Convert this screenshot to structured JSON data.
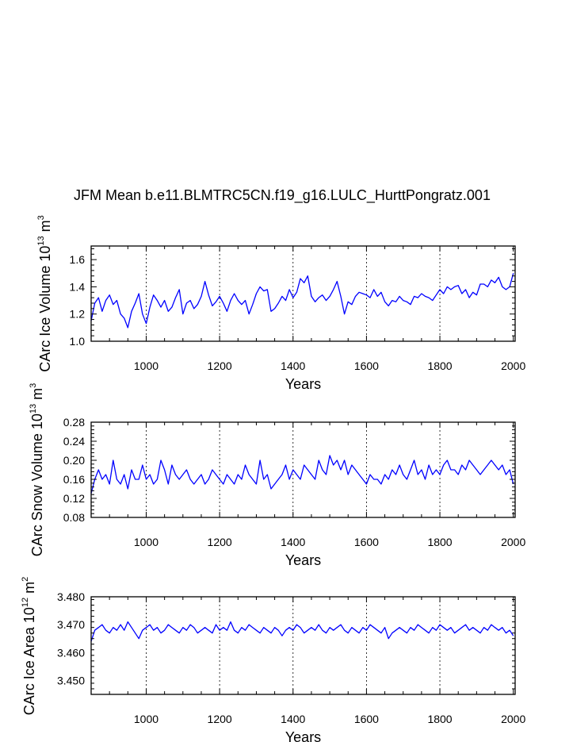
{
  "title": "JFM Mean b.e11.BLMTRC5CN.f19_g16.LULC_HurttPongratz.001",
  "colors": {
    "series": "#0000ff",
    "axis": "#000000",
    "gridline": "#000000"
  },
  "chart_data": [
    {
      "type": "line",
      "ylabel": "CArc Ice Volume 10",
      "ylabel_exp": "13",
      "ylabel_unit": " m",
      "ylabel_unit_exp": "3",
      "xlabel": "Years",
      "xlim": [
        850,
        2005
      ],
      "ylim": [
        1.0,
        1.7
      ],
      "xticks": [
        1000,
        1200,
        1400,
        1600,
        1800,
        2000
      ],
      "xtick_labels": [
        "1000",
        "1200",
        "1400",
        "1600",
        "1800",
        "2000"
      ],
      "yticks": [
        1.0,
        1.2,
        1.4,
        1.6
      ],
      "ytick_labels": [
        "1.0",
        "1.2",
        "1.4",
        "1.6"
      ],
      "vlines": [
        1000,
        1200,
        1400,
        1600,
        1800
      ],
      "series": [
        {
          "name": "ice_volume",
          "x_start": 850,
          "x_step": 10,
          "values": [
            1.15,
            1.28,
            1.32,
            1.22,
            1.3,
            1.34,
            1.27,
            1.3,
            1.2,
            1.17,
            1.1,
            1.22,
            1.28,
            1.35,
            1.2,
            1.13,
            1.25,
            1.34,
            1.3,
            1.25,
            1.3,
            1.22,
            1.25,
            1.32,
            1.38,
            1.2,
            1.28,
            1.3,
            1.24,
            1.27,
            1.33,
            1.44,
            1.34,
            1.26,
            1.29,
            1.33,
            1.28,
            1.22,
            1.3,
            1.35,
            1.3,
            1.27,
            1.3,
            1.2,
            1.27,
            1.35,
            1.4,
            1.37,
            1.38,
            1.22,
            1.24,
            1.28,
            1.33,
            1.3,
            1.38,
            1.32,
            1.36,
            1.46,
            1.43,
            1.48,
            1.33,
            1.29,
            1.32,
            1.34,
            1.3,
            1.33,
            1.38,
            1.44,
            1.33,
            1.2,
            1.29,
            1.27,
            1.33,
            1.36,
            1.35,
            1.34,
            1.32,
            1.38,
            1.33,
            1.36,
            1.29,
            1.26,
            1.3,
            1.29,
            1.33,
            1.3,
            1.29,
            1.27,
            1.33,
            1.32,
            1.35,
            1.33,
            1.32,
            1.3,
            1.34,
            1.38,
            1.35,
            1.4,
            1.38,
            1.4,
            1.41,
            1.35,
            1.38,
            1.32,
            1.36,
            1.34,
            1.42,
            1.42,
            1.4,
            1.45,
            1.43,
            1.47,
            1.4,
            1.38,
            1.4,
            1.5
          ]
        }
      ]
    },
    {
      "type": "line",
      "ylabel": "CArc Snow Volume 10",
      "ylabel_exp": "13",
      "ylabel_unit": " m",
      "ylabel_unit_exp": "3",
      "xlabel": "Years",
      "xlim": [
        850,
        2005
      ],
      "ylim": [
        0.08,
        0.28
      ],
      "xticks": [
        1000,
        1200,
        1400,
        1600,
        1800,
        2000
      ],
      "xtick_labels": [
        "1000",
        "1200",
        "1400",
        "1600",
        "1800",
        "2000"
      ],
      "yticks": [
        0.08,
        0.12,
        0.16,
        0.2,
        0.24,
        0.28
      ],
      "ytick_labels": [
        "0.08",
        "0.12",
        "0.16",
        "0.20",
        "0.24",
        "0.28"
      ],
      "vlines": [
        1000,
        1200,
        1400,
        1600,
        1800
      ],
      "series": [
        {
          "name": "snow_volume",
          "x_start": 850,
          "x_step": 10,
          "values": [
            0.13,
            0.16,
            0.18,
            0.16,
            0.17,
            0.15,
            0.2,
            0.16,
            0.15,
            0.17,
            0.14,
            0.18,
            0.16,
            0.16,
            0.19,
            0.16,
            0.17,
            0.15,
            0.16,
            0.2,
            0.18,
            0.15,
            0.19,
            0.17,
            0.16,
            0.17,
            0.18,
            0.16,
            0.15,
            0.16,
            0.17,
            0.15,
            0.16,
            0.18,
            0.17,
            0.16,
            0.15,
            0.17,
            0.16,
            0.15,
            0.17,
            0.16,
            0.19,
            0.17,
            0.16,
            0.15,
            0.2,
            0.16,
            0.17,
            0.14,
            0.15,
            0.16,
            0.17,
            0.19,
            0.16,
            0.18,
            0.17,
            0.16,
            0.19,
            0.18,
            0.17,
            0.16,
            0.2,
            0.18,
            0.17,
            0.21,
            0.19,
            0.2,
            0.18,
            0.2,
            0.17,
            0.19,
            0.18,
            0.17,
            0.16,
            0.15,
            0.17,
            0.16,
            0.16,
            0.15,
            0.17,
            0.16,
            0.18,
            0.17,
            0.19,
            0.17,
            0.16,
            0.18,
            0.2,
            0.17,
            0.18,
            0.16,
            0.19,
            0.17,
            0.18,
            0.17,
            0.19,
            0.2,
            0.18,
            0.18,
            0.17,
            0.19,
            0.18,
            0.2,
            0.19,
            0.18,
            0.17,
            0.18,
            0.19,
            0.2,
            0.19,
            0.18,
            0.19,
            0.17,
            0.18,
            0.15
          ]
        }
      ]
    },
    {
      "type": "line",
      "ylabel": "CArc Ice Area 10",
      "ylabel_exp": "12",
      "ylabel_unit": " m",
      "ylabel_unit_exp": "2",
      "xlabel": "Years",
      "xlim": [
        850,
        2005
      ],
      "ylim": [
        3.445,
        3.48
      ],
      "xticks": [
        1000,
        1200,
        1400,
        1600,
        1800,
        2000
      ],
      "xtick_labels": [
        "1000",
        "1200",
        "1400",
        "1600",
        "1800",
        "2000"
      ],
      "yticks": [
        3.45,
        3.46,
        3.47,
        3.48
      ],
      "ytick_labels": [
        "3.450",
        "3.460",
        "3.470",
        "3.480"
      ],
      "vlines": [
        1000,
        1200,
        1400,
        1600,
        1800
      ],
      "series": [
        {
          "name": "ice_area",
          "x_start": 850,
          "x_step": 10,
          "values": [
            3.464,
            3.468,
            3.469,
            3.47,
            3.468,
            3.467,
            3.469,
            3.468,
            3.47,
            3.468,
            3.471,
            3.469,
            3.467,
            3.465,
            3.468,
            3.469,
            3.47,
            3.468,
            3.469,
            3.467,
            3.468,
            3.47,
            3.469,
            3.468,
            3.467,
            3.469,
            3.468,
            3.47,
            3.469,
            3.467,
            3.468,
            3.469,
            3.468,
            3.467,
            3.47,
            3.468,
            3.469,
            3.468,
            3.471,
            3.468,
            3.467,
            3.469,
            3.468,
            3.47,
            3.469,
            3.468,
            3.467,
            3.469,
            3.468,
            3.467,
            3.469,
            3.468,
            3.466,
            3.468,
            3.469,
            3.468,
            3.47,
            3.469,
            3.467,
            3.468,
            3.469,
            3.468,
            3.47,
            3.468,
            3.467,
            3.469,
            3.468,
            3.469,
            3.47,
            3.468,
            3.467,
            3.469,
            3.468,
            3.467,
            3.469,
            3.468,
            3.47,
            3.469,
            3.468,
            3.467,
            3.469,
            3.465,
            3.467,
            3.468,
            3.469,
            3.468,
            3.467,
            3.469,
            3.468,
            3.47,
            3.469,
            3.468,
            3.467,
            3.469,
            3.468,
            3.47,
            3.469,
            3.468,
            3.469,
            3.467,
            3.468,
            3.469,
            3.47,
            3.468,
            3.469,
            3.468,
            3.467,
            3.469,
            3.468,
            3.47,
            3.469,
            3.468,
            3.469,
            3.467,
            3.468,
            3.466
          ]
        }
      ]
    }
  ]
}
